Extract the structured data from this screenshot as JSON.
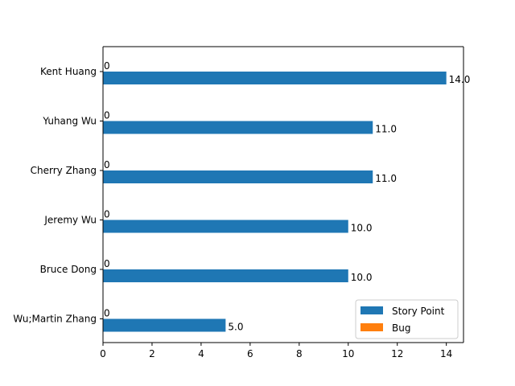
{
  "chart_data": {
    "type": "bar",
    "orientation": "horizontal",
    "title": "",
    "xlabel": "",
    "ylabel": "",
    "categories": [
      "Kent Huang",
      "Yuhang Wu",
      "Cherry Zhang",
      "Jeremy Wu",
      "Bruce Dong",
      "Wu;Martin Zhang"
    ],
    "series": [
      {
        "name": "Story Point",
        "color": "#1f77b4",
        "values": [
          14.0,
          11.0,
          11.0,
          10.0,
          10.0,
          5.0
        ],
        "labels": [
          "14.0",
          "11.0",
          "11.0",
          "10.0",
          "10.0",
          "5.0"
        ]
      },
      {
        "name": "Bug",
        "color": "#ff7f0e",
        "values": [
          0,
          0,
          0,
          0,
          0,
          0
        ],
        "labels": [
          "0",
          "0",
          "0",
          "0",
          "0",
          "0"
        ]
      }
    ],
    "xlim": [
      0,
      14.7
    ],
    "xticks": [
      0,
      2,
      4,
      6,
      8,
      10,
      12,
      14
    ],
    "grid": false,
    "legend_position": "lower-right"
  }
}
